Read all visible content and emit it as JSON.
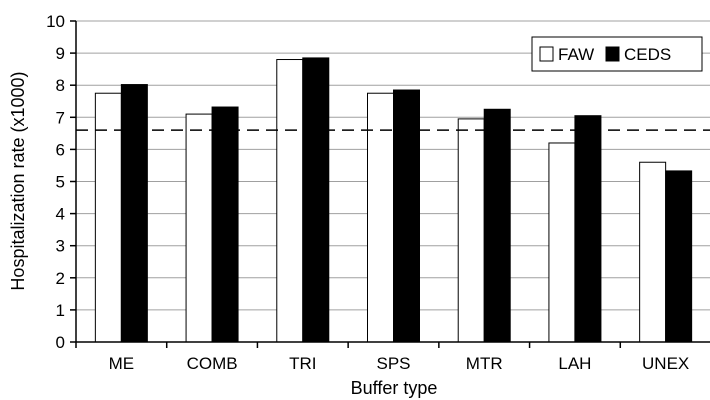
{
  "chart_data": {
    "type": "bar",
    "xlabel": "Buffer type",
    "ylabel": "Hospitalization rate (x1000)",
    "categories": [
      "ME",
      "COMB",
      "TRI",
      "SPS",
      "MTR",
      "LAH",
      "UNEX"
    ],
    "series": [
      {
        "name": "FAW",
        "values": [
          7.75,
          7.1,
          8.8,
          7.75,
          6.95,
          6.2,
          5.6
        ],
        "color": "#ffffff"
      },
      {
        "name": "CEDS",
        "values": [
          8.02,
          7.32,
          8.85,
          7.85,
          7.25,
          7.05,
          5.33
        ],
        "color": "#000000"
      }
    ],
    "reference_line": {
      "value": 6.6,
      "style": "dashed"
    },
    "ylim": [
      0,
      10
    ],
    "yticks": [
      0,
      1,
      2,
      3,
      4,
      5,
      6,
      7,
      8,
      9,
      10
    ],
    "grid": true,
    "legend_position": "top-right"
  }
}
